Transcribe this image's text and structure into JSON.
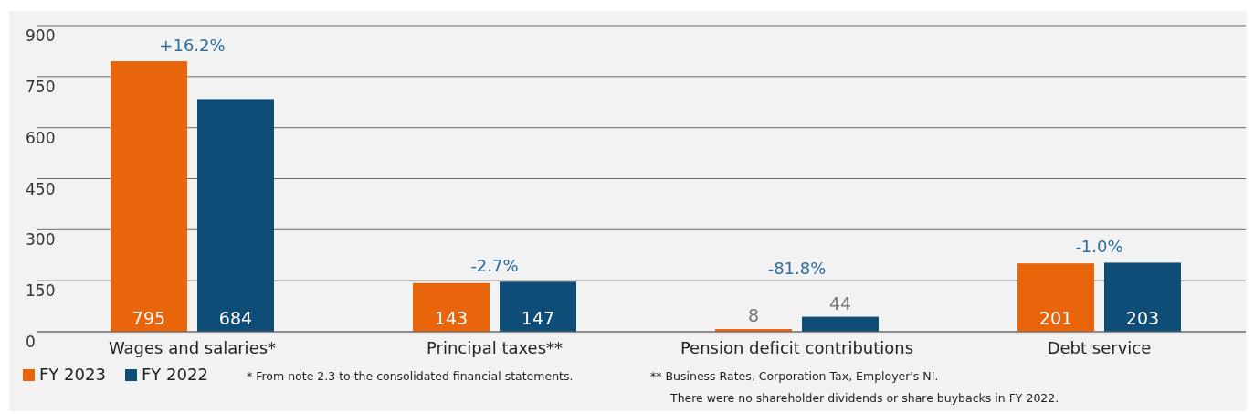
{
  "chart_data": {
    "type": "bar",
    "categories": [
      "Wages and salaries*",
      "Principal taxes**",
      "Pension deficit contributions",
      "Debt service"
    ],
    "series": [
      {
        "name": "FY 2023",
        "color": "#e8650c",
        "values": [
          795,
          143,
          8,
          201
        ]
      },
      {
        "name": "FY 2022",
        "color": "#0e4d77",
        "values": [
          684,
          147,
          44,
          203
        ]
      }
    ],
    "ylim": [
      0,
      900
    ],
    "yticks": [
      0,
      150,
      300,
      450,
      600,
      750,
      900
    ],
    "grid": "y",
    "legend": "bottom left",
    "data_labels": true,
    "annotations": [
      "+16.2%",
      "-2.7%",
      "-81.8%",
      "-1.0%",
      "* From note 2.3 to the consolidated financial statements.",
      "** Business Rates, Corporation Tax, Employer's NI.",
      "There were no shareholder dividends or share buybacks in FY 2022."
    ]
  }
}
